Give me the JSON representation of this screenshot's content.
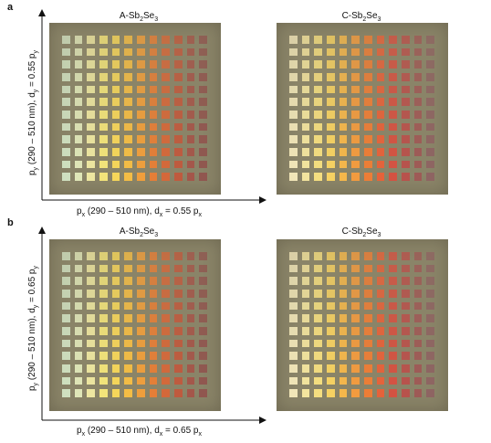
{
  "panels": [
    {
      "label": "a",
      "samples": [
        {
          "title_main": "A-Sb",
          "title_sub1": "2",
          "title_mid": "Se",
          "title_sub2": "3",
          "phase": "amorphous"
        },
        {
          "title_main": "C-Sb",
          "title_sub1": "2",
          "title_mid": "Se",
          "title_sub2": "3",
          "phase": "crystalline"
        }
      ],
      "x_axis": {
        "pre": "p",
        "pre_sub": "x",
        "text": " (290 – 510 nm), d",
        "d_sub": "x",
        "post": " = 0.55 p",
        "post_sub": "x"
      },
      "y_axis": {
        "pre": "p",
        "pre_sub": "y",
        "text": " (290 – 510 nm), d",
        "d_sub": "y",
        "post": " = 0.55 p",
        "post_sub": "y"
      }
    },
    {
      "label": "b",
      "samples": [
        {
          "title_main": "A-Sb",
          "title_sub1": "2",
          "title_mid": "Se",
          "title_sub2": "3",
          "phase": "amorphous"
        },
        {
          "title_main": "C-Sb",
          "title_sub1": "2",
          "title_mid": "Se",
          "title_sub2": "3",
          "phase": "crystalline"
        }
      ],
      "x_axis": {
        "pre": "p",
        "pre_sub": "x",
        "text": " (290 – 510 nm), d",
        "d_sub": "x",
        "post": " = 0.65 p",
        "post_sub": "x"
      },
      "y_axis": {
        "pre": "p",
        "pre_sub": "y",
        "text": " (290 – 510 nm), d",
        "d_sub": "y",
        "post": " = 0.65 p",
        "post_sub": "y"
      }
    }
  ],
  "colors": {
    "substrate": "#8a8468",
    "amorphous_ramp": [
      "#cfe0c0",
      "#dfe6b8",
      "#ede6a0",
      "#f3e47a",
      "#f6d65a",
      "#f4bd45",
      "#ef9e3c",
      "#e57e37",
      "#d4683a",
      "#bf5a3e",
      "#a4564a",
      "#90564f"
    ],
    "crystalline_ramp": [
      "#f1e6b8",
      "#f3e49e",
      "#f5de80",
      "#f6d162",
      "#f5b74b",
      "#f29b3f",
      "#ed7d36",
      "#e5623a",
      "#d45242",
      "#b8524c",
      "#9e5a56",
      "#8e6462"
    ]
  }
}
